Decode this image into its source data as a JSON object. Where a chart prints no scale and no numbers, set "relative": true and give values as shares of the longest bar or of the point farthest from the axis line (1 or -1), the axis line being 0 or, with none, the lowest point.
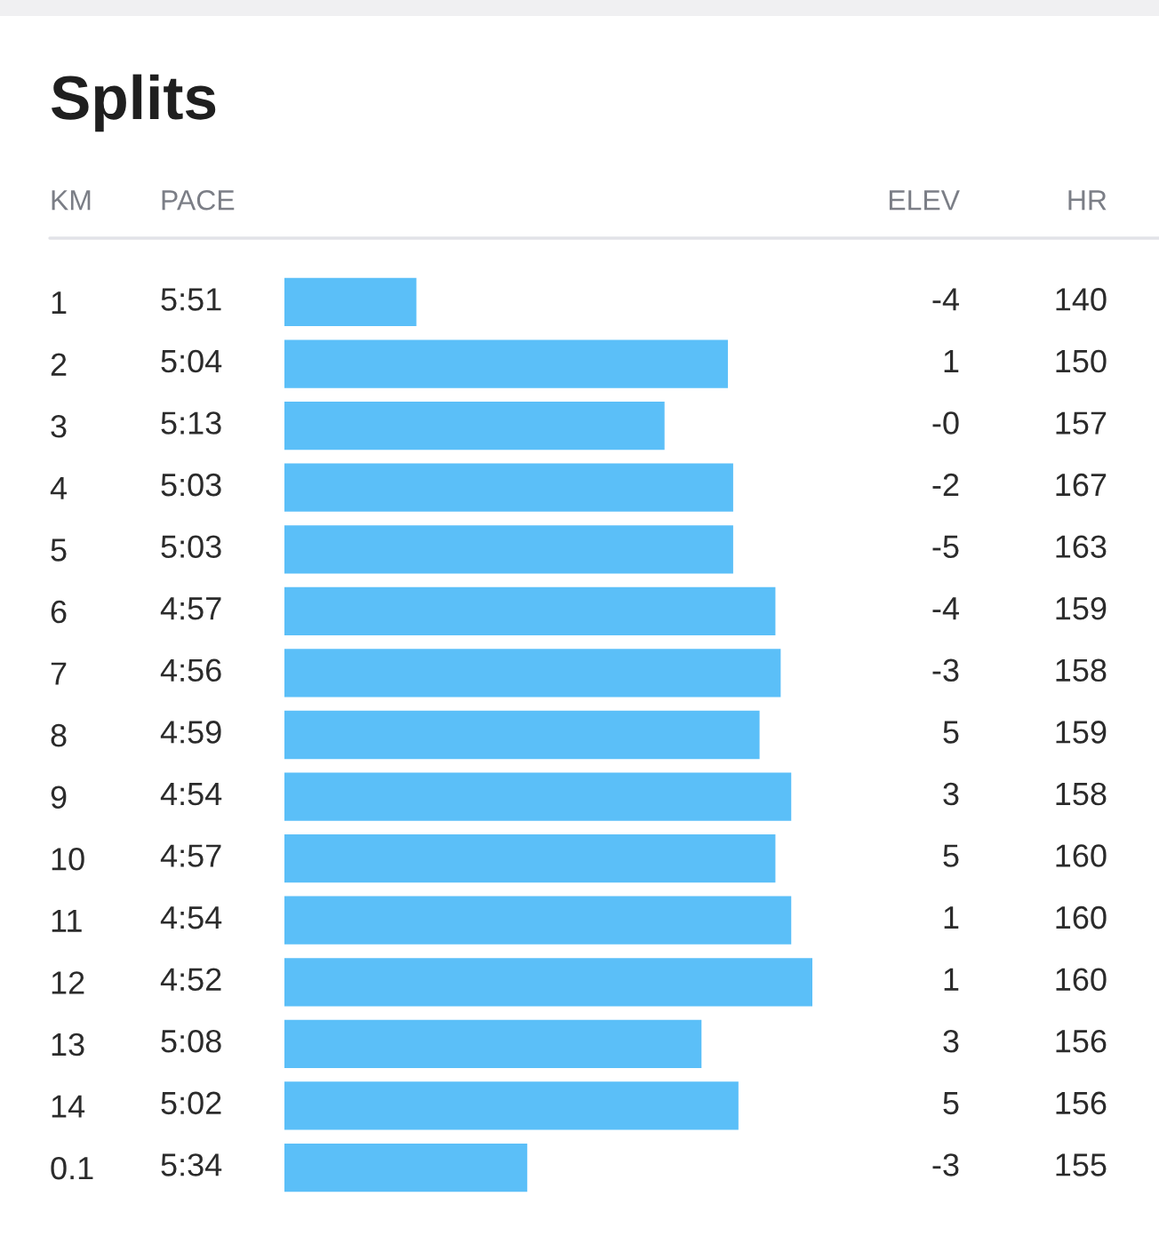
{
  "chart_data": [
    {
      "type": "bar",
      "orientation": "horizontal",
      "relative": true,
      "title": "Splits",
      "ylabel": "KM",
      "categories": [
        "1",
        "2",
        "3",
        "4",
        "5",
        "6",
        "7",
        "8",
        "9",
        "10",
        "11",
        "12",
        "13",
        "14",
        "0.1"
      ],
      "values": [
        0.25,
        0.84,
        0.72,
        0.85,
        0.85,
        0.93,
        0.94,
        0.9,
        0.96,
        0.93,
        0.96,
        1,
        0.79,
        0.86,
        0.46
      ],
      "color": "#5bbff8"
    },
    {
      "type": "other",
      "title": "PACE",
      "values": [
        5.85,
        5.0667,
        5.2167,
        5.05,
        5.05,
        4.95,
        4.9333,
        4.9833,
        4.9,
        4.95,
        4.9,
        4.8667,
        5.1333,
        5.0333,
        5.5667
      ],
      "value_labels": [
        "5:51",
        "5:04",
        "5:13",
        "5:03",
        "5:03",
        "4:57",
        "4:56",
        "4:59",
        "4:54",
        "4:57",
        "4:54",
        "4:52",
        "5:08",
        "5:02",
        "5:34"
      ]
    },
    {
      "type": "other",
      "title": "ELEV",
      "values": [
        -4,
        1,
        0,
        -2,
        -5,
        -4,
        -3,
        5,
        3,
        5,
        1,
        1,
        3,
        5,
        -3
      ],
      "value_labels": [
        "-4",
        "1",
        "-0",
        "-2",
        "-5",
        "-4",
        "-3",
        "5",
        "3",
        "5",
        "1",
        "1",
        "3",
        "5",
        "-3"
      ]
    },
    {
      "type": "other",
      "title": "HR",
      "values": [
        140,
        150,
        157,
        167,
        163,
        159,
        158,
        159,
        158,
        160,
        160,
        160,
        156,
        156,
        155
      ],
      "data_labels": true
    }
  ]
}
